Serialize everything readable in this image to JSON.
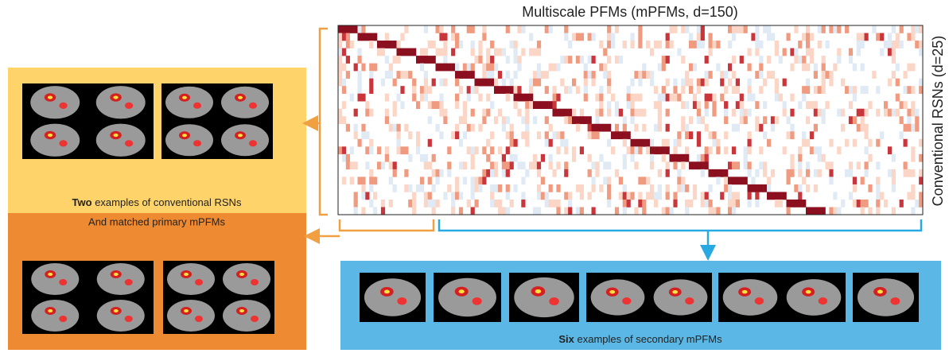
{
  "heatmap": {
    "title": "Multiscale PFMs (mPFMs, d=150)",
    "row_label": "Conventional RSNs (d=25)"
  },
  "primary_panel": {
    "caption_bold": "Two",
    "caption_rest": " examples of conventional RSNs",
    "caption_line2": "And matched primary mPFMs"
  },
  "secondary_panel": {
    "caption_bold": "Six",
    "caption_rest": " examples of secondary mPFMs"
  }
}
